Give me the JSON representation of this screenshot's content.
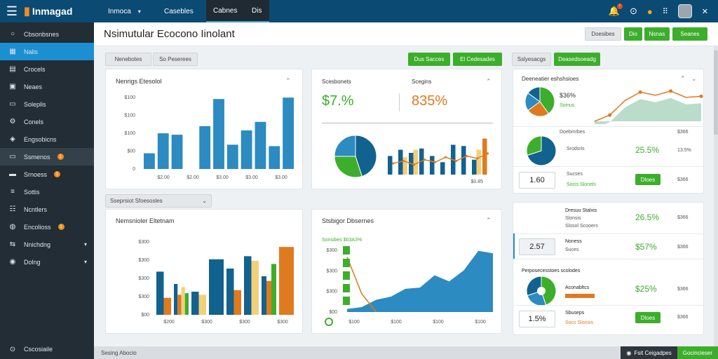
{
  "topbar": {
    "logo_text": "Inmagad",
    "nav": [
      {
        "label": "Inmoca",
        "active": false,
        "has_dropdown": true
      },
      {
        "label": "Casebles",
        "active": false,
        "has_dropdown": false
      },
      {
        "label": "Cabnes",
        "active": true,
        "has_dropdown": false
      },
      {
        "label": "Dis",
        "active": true,
        "has_dropdown": false
      }
    ],
    "icons": [
      "bell-icon",
      "help-icon",
      "coin-icon",
      "apps-grid-icon",
      "avatar",
      "close-icon"
    ],
    "notification_badge": "!"
  },
  "sidebar": {
    "items": [
      {
        "label": "Cbsonbsnes",
        "icon": "circle-icon",
        "active": false,
        "badge": "",
        "dropdown": false
      },
      {
        "label": "Nalis",
        "icon": "grid-icon",
        "active": true,
        "badge": "",
        "dropdown": false
      },
      {
        "label": "Crocels",
        "icon": "list-icon",
        "active": false,
        "badge": "",
        "dropdown": false
      },
      {
        "label": "Neaes",
        "icon": "calendar-icon",
        "active": false,
        "badge": "",
        "dropdown": false
      },
      {
        "label": "Soleplis",
        "icon": "document-icon",
        "active": false,
        "badge": "",
        "dropdown": false
      },
      {
        "label": "Conels",
        "icon": "settings-icon",
        "active": false,
        "badge": "",
        "dropdown": false
      },
      {
        "label": "Engsobicns",
        "icon": "tag-icon",
        "active": false,
        "badge": "",
        "dropdown": false
      },
      {
        "label": "Ssmenos",
        "icon": "folder-icon",
        "active": false,
        "badge": "1",
        "dropdown": false,
        "highlight": true
      },
      {
        "label": "Srnoess",
        "icon": "card-icon",
        "active": false,
        "badge": "1",
        "dropdown": false
      },
      {
        "label": "Sottis",
        "icon": "sliders-icon",
        "active": false,
        "badge": "",
        "dropdown": false
      },
      {
        "label": "Ncntlers",
        "icon": "users-icon",
        "active": false,
        "badge": "",
        "dropdown": false
      },
      {
        "label": "Encolioss",
        "icon": "globe-icon",
        "active": false,
        "badge": "1",
        "dropdown": false
      },
      {
        "label": "Nnichdng",
        "icon": "share-icon",
        "active": false,
        "badge": "",
        "dropdown": true
      },
      {
        "label": "Dolng",
        "icon": "gear-icon",
        "active": false,
        "badge": "",
        "dropdown": true
      }
    ],
    "footer_label": "Cscosiaile"
  },
  "header": {
    "title": "Nsimutular Ecocono Iinolant",
    "buttons": [
      {
        "label": "Doesibes",
        "style": "grey"
      },
      {
        "label": "Dio",
        "style": "green"
      },
      {
        "label": "Nsnas",
        "style": "green"
      },
      {
        "label": "Seanes",
        "style": "green"
      }
    ]
  },
  "filters": {
    "left": [
      {
        "label": "Nenebotes",
        "style": "grey"
      },
      {
        "label": "So Peserees",
        "style": "grey"
      }
    ],
    "middle": [
      {
        "label": "Dus Sacces",
        "style": "green"
      },
      {
        "label": "El Cedesades",
        "style": "green"
      }
    ],
    "right": [
      {
        "label": "Sslyesacgs",
        "style": "grey"
      },
      {
        "label": "Deasedsoeadg",
        "style": "green"
      }
    ]
  },
  "card1": {
    "title": "Nenrigs Etesolol",
    "y_ticks": [
      "$100",
      "$100",
      "$100",
      "$00",
      "0"
    ],
    "x_labels": [
      "$2.00",
      "$2.00",
      "$3.00",
      "$3.00",
      "$3.00"
    ]
  },
  "card2": {
    "label_left": "Scesbonets",
    "label_right": "Scegins",
    "value_left": "$7.%",
    "value_right": "835%",
    "x_label": "$0.85"
  },
  "card3": {
    "title": "Nemsnioler Eltetnam",
    "dropdown_label": "Sseprsiot Sfoesosles",
    "y_ticks": [
      "$300",
      "$300",
      "$300",
      "$300",
      "$00"
    ],
    "x_labels": [
      "$200",
      "$300",
      "$300",
      "$300"
    ]
  },
  "card4": {
    "title": "Stsbigor Dbsernes",
    "legend_text": "Sonsibes $03A3%",
    "y_ticks": [
      "$300",
      "$300",
      "$300",
      "$00"
    ],
    "x_labels": [
      "$100",
      "$100",
      "$100",
      "$100"
    ]
  },
  "right_panel": {
    "top": {
      "title": "Deeneatier eshshsioes",
      "pie_value": "$36%",
      "pie_sub": "Skoinus",
      "pie_label_green": "Soinus"
    },
    "rows": [
      {
        "title": "Doebmrbes",
        "right": "$366",
        "value": "",
        "sub": "Srodsris",
        "sub2": "",
        "pct": "25.5%",
        "pct_color": "green",
        "right2": "13.5%",
        "box": ""
      },
      {
        "title": "",
        "right": "",
        "value": "1.60",
        "sub": "Sucses",
        "sub2": "Socis Slonels",
        "pct": "",
        "pct_color": "",
        "right2": "$366",
        "box": "1.60",
        "button": "Dloes"
      }
    ],
    "bottom_block": [
      {
        "line1": "Dresuu Stalxis",
        "line2": "Slonsis",
        "line3": "Slosol Scooers",
        "pct": "26.5%",
        "pct_color": "green",
        "right": "$366"
      },
      {
        "line1": "Noness",
        "line2": "Suces",
        "box": "2.57",
        "pct": "$57%",
        "pct_color": "green",
        "right": "$366"
      },
      {
        "line1": "Perposecesstoes scolodes",
        "line2": "Aconabltcs",
        "pct": "$25%",
        "pct_color": "green",
        "right": "$366"
      },
      {
        "line1": "Sbuseps",
        "line2": "Socs Slonsis",
        "box": "1.5%",
        "button": "Dloes",
        "right": "$366"
      }
    ]
  },
  "statusbar": {
    "left": "Sesing Abocio",
    "dark": "Fsit Ceigadpes",
    "green": "Gocincieser"
  },
  "colors": {
    "blue": "#2c8bc0",
    "dark_blue": "#12628f",
    "green": "#3cae2b",
    "orange": "#e07a1f",
    "yellow": "#f2d07a",
    "topbar": "#0b4a73",
    "sidebar": "#222d35"
  },
  "chart_data": [
    {
      "type": "bar",
      "title": "Nenrigs Etesolol",
      "categories": [
        "1",
        "2",
        "3",
        "4",
        "5",
        "6",
        "7",
        "8",
        "9",
        "10",
        "11"
      ],
      "values": [
        22,
        50,
        48,
        0,
        60,
        98,
        34,
        54,
        66,
        32,
        100
      ],
      "ylim": [
        0,
        110
      ]
    },
    {
      "type": "bar",
      "title": "Nemsnioler Eltetnam",
      "categories": [
        "1",
        "2",
        "3",
        "4",
        "5",
        "6",
        "7",
        "8"
      ],
      "series": [
        {
          "name": "",
          "values": [
            56,
            40,
            30,
            72,
            60,
            76,
            50,
            0
          ]
        },
        {
          "name": "",
          "values": [
            22,
            26,
            0,
            0,
            32,
            0,
            44,
            88
          ]
        },
        {
          "name": "",
          "values": [
            0,
            36,
            26,
            0,
            0,
            70,
            0,
            0
          ]
        },
        {
          "name": "",
          "values": [
            0,
            28,
            0,
            0,
            0,
            0,
            66,
            0
          ]
        }
      ],
      "ylim": [
        0,
        100
      ]
    },
    {
      "type": "area",
      "title": "Stsbigor Dbsernes",
      "x": [
        0,
        1,
        2,
        3,
        4,
        5,
        6,
        7,
        8,
        9,
        10
      ],
      "y": [
        5,
        8,
        20,
        25,
        38,
        40,
        60,
        50,
        68,
        100,
        96
      ],
      "line": [
        90,
        30,
        0,
        0,
        0,
        0,
        0,
        0,
        0,
        0,
        0
      ],
      "ylim": [
        0,
        110
      ]
    },
    {
      "type": "bar",
      "title": "Scesbonets",
      "categories": [
        "1",
        "2",
        "3",
        "4",
        "5",
        "6",
        "7",
        "8",
        "9",
        "10"
      ],
      "series": [
        {
          "name": "",
          "values": [
            30,
            40,
            35,
            42,
            30,
            20,
            48,
            46,
            24,
            58
          ]
        },
        {
          "name": "",
          "values": [
            0,
            28,
            40,
            0,
            0,
            0,
            0,
            0,
            40,
            0
          ]
        }
      ],
      "line": [
        18,
        22,
        16,
        24,
        20,
        28,
        22,
        30,
        26,
        34
      ],
      "ylim": [
        0,
        70
      ]
    },
    {
      "type": "pie",
      "title": "Scesbonets",
      "values": [
        45,
        30,
        25
      ],
      "labels": [
        "",
        "",
        ""
      ]
    },
    {
      "type": "line",
      "title": "Deeneatier eshshsioes",
      "x": [
        0,
        1,
        2,
        3,
        4,
        5,
        6,
        7
      ],
      "y": [
        0,
        12,
        40,
        56,
        50,
        58,
        46,
        48
      ],
      "ylim": [
        0,
        70
      ]
    }
  ]
}
